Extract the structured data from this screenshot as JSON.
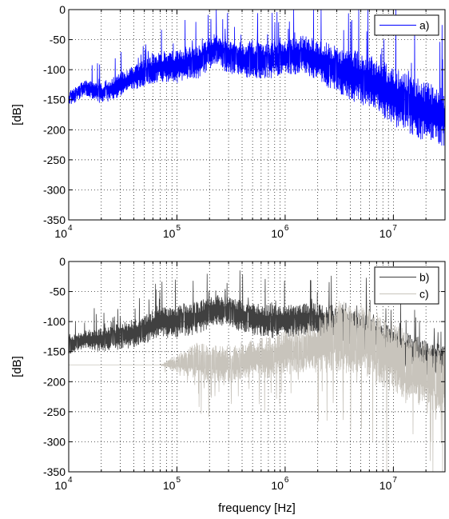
{
  "chart_data": [
    {
      "type": "line",
      "title": "",
      "xlabel": "",
      "ylabel": "[dB]",
      "xscale": "log",
      "xlim": [
        10000,
        30000000
      ],
      "ylim": [
        -350,
        0
      ],
      "grid": true,
      "legend": "top-right",
      "x_ticks": [
        {
          "base": "10",
          "exp": "4"
        },
        {
          "base": "10",
          "exp": "5"
        },
        {
          "base": "10",
          "exp": "6"
        },
        {
          "base": "10",
          "exp": "7"
        }
      ],
      "y_ticks": [
        "0",
        "-50",
        "-100",
        "-150",
        "-200",
        "-250",
        "-300",
        "-350"
      ],
      "series": [
        {
          "name": "a)",
          "color": "#0000ff",
          "x": [
            10000,
            14000,
            20000,
            30000,
            50000,
            70000,
            100000,
            150000,
            230000,
            300000,
            500000,
            700000,
            1000000,
            1500000,
            2000000,
            3000000,
            5000000,
            7000000,
            10000000,
            20000000,
            30000000
          ],
          "y": [
            -150,
            -130,
            -140,
            -125,
            -105,
            -95,
            -95,
            -90,
            -65,
            -80,
            -85,
            -85,
            -80,
            -75,
            -85,
            -100,
            -115,
            -125,
            -145,
            -170,
            -180
          ],
          "band": [
            -25,
            -25,
            -35,
            -40,
            -45,
            -50,
            -55,
            -55,
            -55,
            -55,
            -60,
            -60,
            -60,
            -65,
            -70,
            -80,
            -90,
            -90,
            -100,
            -100,
            -100
          ]
        }
      ]
    },
    {
      "type": "line",
      "title": "",
      "xlabel": "frequency [Hz]",
      "ylabel": "[dB]",
      "xscale": "log",
      "xlim": [
        10000,
        30000000
      ],
      "ylim": [
        -350,
        0
      ],
      "grid": true,
      "legend": "top-right",
      "x_ticks": [
        {
          "base": "10",
          "exp": "4"
        },
        {
          "base": "10",
          "exp": "5"
        },
        {
          "base": "10",
          "exp": "6"
        },
        {
          "base": "10",
          "exp": "7"
        }
      ],
      "y_ticks": [
        "0",
        "-50",
        "-100",
        "-150",
        "-200",
        "-250",
        "-300",
        "-350"
      ],
      "series": [
        {
          "name": "b)",
          "color": "#404040",
          "x": [
            10000,
            14000,
            20000,
            30000,
            50000,
            70000,
            100000,
            150000,
            230000,
            300000,
            500000,
            700000,
            1000000,
            1500000,
            2000000,
            3000000,
            5000000,
            7000000,
            10000000,
            20000000,
            30000000
          ],
          "y": [
            -140,
            -130,
            -130,
            -125,
            -115,
            -100,
            -100,
            -95,
            -80,
            -85,
            -95,
            -100,
            -100,
            -95,
            -100,
            -105,
            -115,
            -125,
            -140,
            -160,
            -165
          ],
          "band": [
            -30,
            -30,
            -40,
            -45,
            -50,
            -55,
            -55,
            -55,
            -50,
            -50,
            -55,
            -55,
            -55,
            -55,
            -60,
            -60,
            -60,
            -60,
            -60,
            -60,
            -50
          ]
        },
        {
          "name": "c)",
          "color": "#c8c4bc",
          "x": [
            10000,
            20000,
            50000,
            70000,
            100000,
            150000,
            230000,
            300000,
            500000,
            700000,
            1000000,
            1500000,
            2000000,
            3000000,
            5000000,
            7000000,
            10000000,
            20000000,
            30000000
          ],
          "y": [
            -172,
            -172,
            -172,
            -172,
            -170,
            -165,
            -170,
            -170,
            -160,
            -160,
            -150,
            -145,
            -140,
            -125,
            -130,
            -140,
            -160,
            -190,
            -200
          ],
          "band": [
            0,
            0,
            0,
            0,
            30,
            60,
            60,
            60,
            65,
            70,
            70,
            80,
            90,
            120,
            120,
            120,
            120,
            110,
            110
          ]
        }
      ]
    }
  ]
}
